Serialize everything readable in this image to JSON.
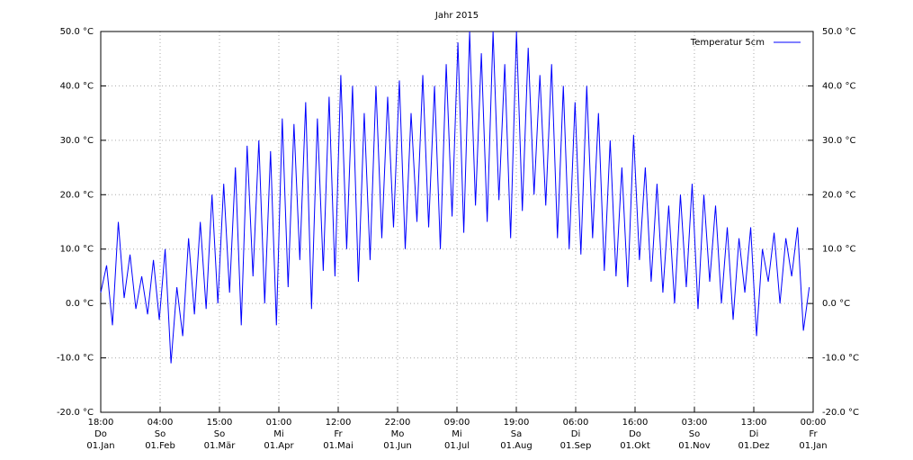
{
  "chart_data": {
    "type": "line",
    "title": "Jahr 2015",
    "xlim": [
      0,
      365
    ],
    "xticks": [
      {
        "value": 0,
        "label": [
          "18:00",
          "Do",
          "01.Jan"
        ]
      },
      {
        "value": 30.42,
        "label": [
          "04:00",
          "So",
          "01.Feb"
        ]
      },
      {
        "value": 60.83,
        "label": [
          "15:00",
          "So",
          "01.Mär"
        ]
      },
      {
        "value": 91.25,
        "label": [
          "01:00",
          "Mi",
          "01.Apr"
        ]
      },
      {
        "value": 121.67,
        "label": [
          "12:00",
          "Fr",
          "01.Mai"
        ]
      },
      {
        "value": 152.08,
        "label": [
          "22:00",
          "Mo",
          "01.Jun"
        ]
      },
      {
        "value": 182.5,
        "label": [
          "09:00",
          "Mi",
          "01.Jul"
        ]
      },
      {
        "value": 212.92,
        "label": [
          "19:00",
          "Sa",
          "01.Aug"
        ]
      },
      {
        "value": 243.33,
        "label": [
          "06:00",
          "Di",
          "01.Sep"
        ]
      },
      {
        "value": 273.75,
        "label": [
          "16:00",
          "Do",
          "01.Okt"
        ]
      },
      {
        "value": 304.17,
        "label": [
          "03:00",
          "So",
          "01.Nov"
        ]
      },
      {
        "value": 334.58,
        "label": [
          "13:00",
          "Di",
          "01.Dez"
        ]
      },
      {
        "value": 365,
        "label": [
          "00:00",
          "Fr",
          "01.Jan"
        ]
      }
    ],
    "ylim": [
      -20,
      50
    ],
    "yticks": [
      {
        "value": -20,
        "label": "-20.0 °C"
      },
      {
        "value": -10,
        "label": "-10.0 °C"
      },
      {
        "value": 0,
        "label": "0.0 °C"
      },
      {
        "value": 10,
        "label": "10.0 °C"
      },
      {
        "value": 20,
        "label": "20.0 °C"
      },
      {
        "value": 30,
        "label": "30.0 °C"
      },
      {
        "value": 40,
        "label": "40.0 °C"
      },
      {
        "value": 50,
        "label": "50.0 °C"
      }
    ],
    "grid": true,
    "legend": "top-right",
    "x": [
      0,
      3,
      6,
      9,
      12,
      15,
      18,
      21,
      24,
      27,
      30,
      33,
      36,
      39,
      42,
      45,
      48,
      51,
      54,
      57,
      60,
      63,
      66,
      69,
      72,
      75,
      78,
      81,
      84,
      87,
      90,
      93,
      96,
      99,
      102,
      105,
      108,
      111,
      114,
      117,
      120,
      123,
      126,
      129,
      132,
      135,
      138,
      141,
      144,
      147,
      150,
      153,
      156,
      159,
      162,
      165,
      168,
      171,
      174,
      177,
      180,
      183,
      186,
      189,
      192,
      195,
      198,
      201,
      204,
      207,
      210,
      213,
      216,
      219,
      222,
      225,
      228,
      231,
      234,
      237,
      240,
      243,
      246,
      249,
      252,
      255,
      258,
      261,
      264,
      267,
      270,
      273,
      276,
      279,
      282,
      285,
      288,
      291,
      294,
      297,
      300,
      303,
      306,
      309,
      312,
      315,
      318,
      321,
      324,
      327,
      330,
      333,
      336,
      339,
      342,
      345,
      348,
      351,
      354,
      357,
      360,
      363
    ],
    "series": [
      {
        "name": "Temperatur 5cm",
        "color": "#0000ff",
        "values": [
          2,
          7,
          -4,
          15,
          1,
          9,
          -1,
          5,
          -2,
          8,
          -3,
          10,
          -11,
          3,
          -6,
          12,
          -2,
          15,
          -1,
          20,
          0,
          22,
          2,
          25,
          -4,
          29,
          5,
          30,
          0,
          28,
          -4,
          34,
          3,
          33,
          8,
          37,
          -1,
          34,
          6,
          38,
          5,
          42,
          10,
          40,
          4,
          35,
          8,
          40,
          12,
          38,
          14,
          41,
          10,
          35,
          15,
          42,
          14,
          40,
          10,
          44,
          16,
          48,
          13,
          50,
          18,
          46,
          15,
          50,
          19,
          44,
          12,
          50,
          17,
          47,
          20,
          42,
          18,
          44,
          12,
          40,
          10,
          37,
          9,
          40,
          12,
          35,
          6,
          30,
          5,
          25,
          3,
          31,
          8,
          25,
          4,
          22,
          2,
          18,
          0,
          20,
          3,
          22,
          -1,
          20,
          4,
          18,
          0,
          14,
          -3,
          12,
          2,
          14,
          -6,
          10,
          4,
          13,
          0,
          12,
          5,
          14,
          -5,
          3
        ]
      }
    ]
  }
}
